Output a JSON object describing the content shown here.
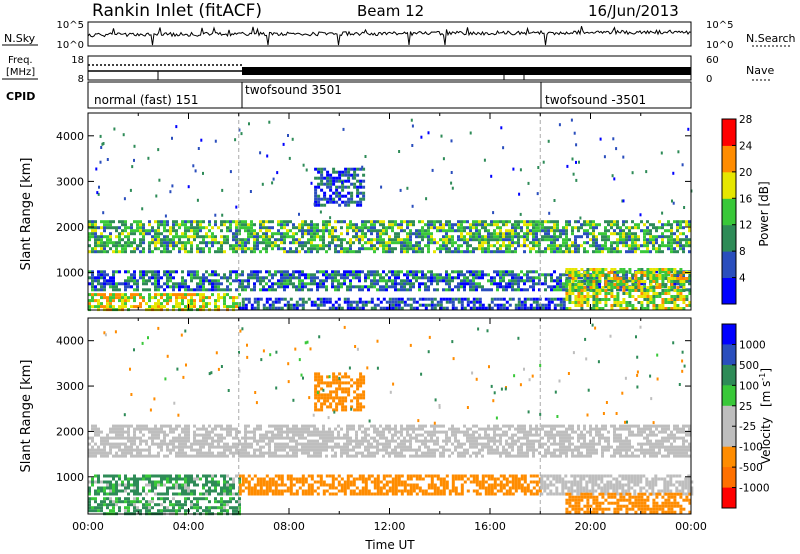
{
  "header": {
    "station": "Rankin Inlet (fitACF)",
    "beam": "Beam 12",
    "date": "16/Jun/2013"
  },
  "top_panels": {
    "nsky_label": "N.Sky",
    "nsky_ticks": [
      "10^5",
      "10^0"
    ],
    "nsearch_label": "N.Search",
    "nsearch_ticks": [
      "10^5",
      "10^0"
    ],
    "freq_label": "Freq.",
    "freq_unit": "[MHz]",
    "freq_ticks": [
      "18",
      "8"
    ],
    "nave_label": "Nave",
    "nave_ticks": [
      "60",
      "0"
    ],
    "cpid_label": "CPID",
    "cpid_segments": [
      {
        "label": "normal (fast) 151",
        "start": 0,
        "end": 6
      },
      {
        "label": "twofsound 3501",
        "start": 6,
        "end": 18
      },
      {
        "label": "twofsound -3501",
        "start": 18,
        "end": 24
      }
    ]
  },
  "chart_data": [
    {
      "type": "heatmap",
      "name": "power",
      "ylabel": "Slant Range [km]",
      "xlabel": "",
      "x_range": [
        0,
        24
      ],
      "ylim": [
        180,
        4500
      ],
      "yticks": [
        1000,
        2000,
        3000,
        4000
      ],
      "colorbar_label": "Power [dB]",
      "colorbar_ticks": [
        "4",
        "8",
        "12",
        "16",
        "20",
        "24",
        "28"
      ],
      "colorbar_colors": [
        "#0000ff",
        "#2a4ebd",
        "#2e8b57",
        "#39c839",
        "#e6e600",
        "#ff8c00",
        "#ff0000"
      ],
      "mode_change_times": [
        6,
        18
      ],
      "echo_bands": [
        {
          "start": 0,
          "end": 24,
          "range_min": 1450,
          "range_max": 2150,
          "value": 14
        },
        {
          "start": 0,
          "end": 24,
          "range_min": 650,
          "range_max": 1050,
          "value": 10
        },
        {
          "start": 0,
          "end": 6,
          "range_min": 200,
          "range_max": 550,
          "value": 20
        },
        {
          "start": 6,
          "end": 19,
          "range_min": 200,
          "range_max": 450,
          "value": 8
        },
        {
          "start": 19,
          "end": 24,
          "range_min": 200,
          "range_max": 1100,
          "value": 18
        },
        {
          "start": 9,
          "end": 11,
          "range_min": 2500,
          "range_max": 3300,
          "value": 8
        }
      ]
    },
    {
      "type": "heatmap",
      "name": "velocity",
      "ylabel": "Slant Range [km]",
      "xlabel": "Time UT",
      "x_range": [
        0,
        24
      ],
      "ylim": [
        180,
        4500
      ],
      "yticks": [
        1000,
        2000,
        3000,
        4000
      ],
      "xticks": [
        "00:00",
        "04:00",
        "08:00",
        "12:00",
        "16:00",
        "20:00",
        "00:00"
      ],
      "colorbar_label": "Velocity",
      "colorbar_unit": "[m s",
      "colorbar_unit_exp": "-1",
      "colorbar_ticks": [
        "1000",
        "500",
        "100",
        "25",
        "-25",
        "-100",
        "-500",
        "-1000"
      ],
      "colorbar_colors": [
        "#0000ff",
        "#2a4ebd",
        "#2e8b57",
        "#39c839",
        "#bebebe",
        "#bebebe",
        "#ff8c00",
        "#ff7000",
        "#ff0000"
      ],
      "mode_change_times": [
        6,
        18
      ],
      "echo_bands": [
        {
          "start": 0,
          "end": 24,
          "range_min": 1450,
          "range_max": 2150,
          "value": 0
        },
        {
          "start": 0,
          "end": 6,
          "range_min": 650,
          "range_max": 1050,
          "value": 150
        },
        {
          "start": 6,
          "end": 18,
          "range_min": 650,
          "range_max": 1050,
          "value": -300
        },
        {
          "start": 18,
          "end": 24,
          "range_min": 650,
          "range_max": 1050,
          "value": 0
        },
        {
          "start": 19,
          "end": 24,
          "range_min": 200,
          "range_max": 650,
          "value": -300
        },
        {
          "start": 0,
          "end": 6,
          "range_min": 200,
          "range_max": 550,
          "value": 150
        },
        {
          "start": 9,
          "end": 11,
          "range_min": 2500,
          "range_max": 3300,
          "value": -300
        }
      ]
    }
  ]
}
